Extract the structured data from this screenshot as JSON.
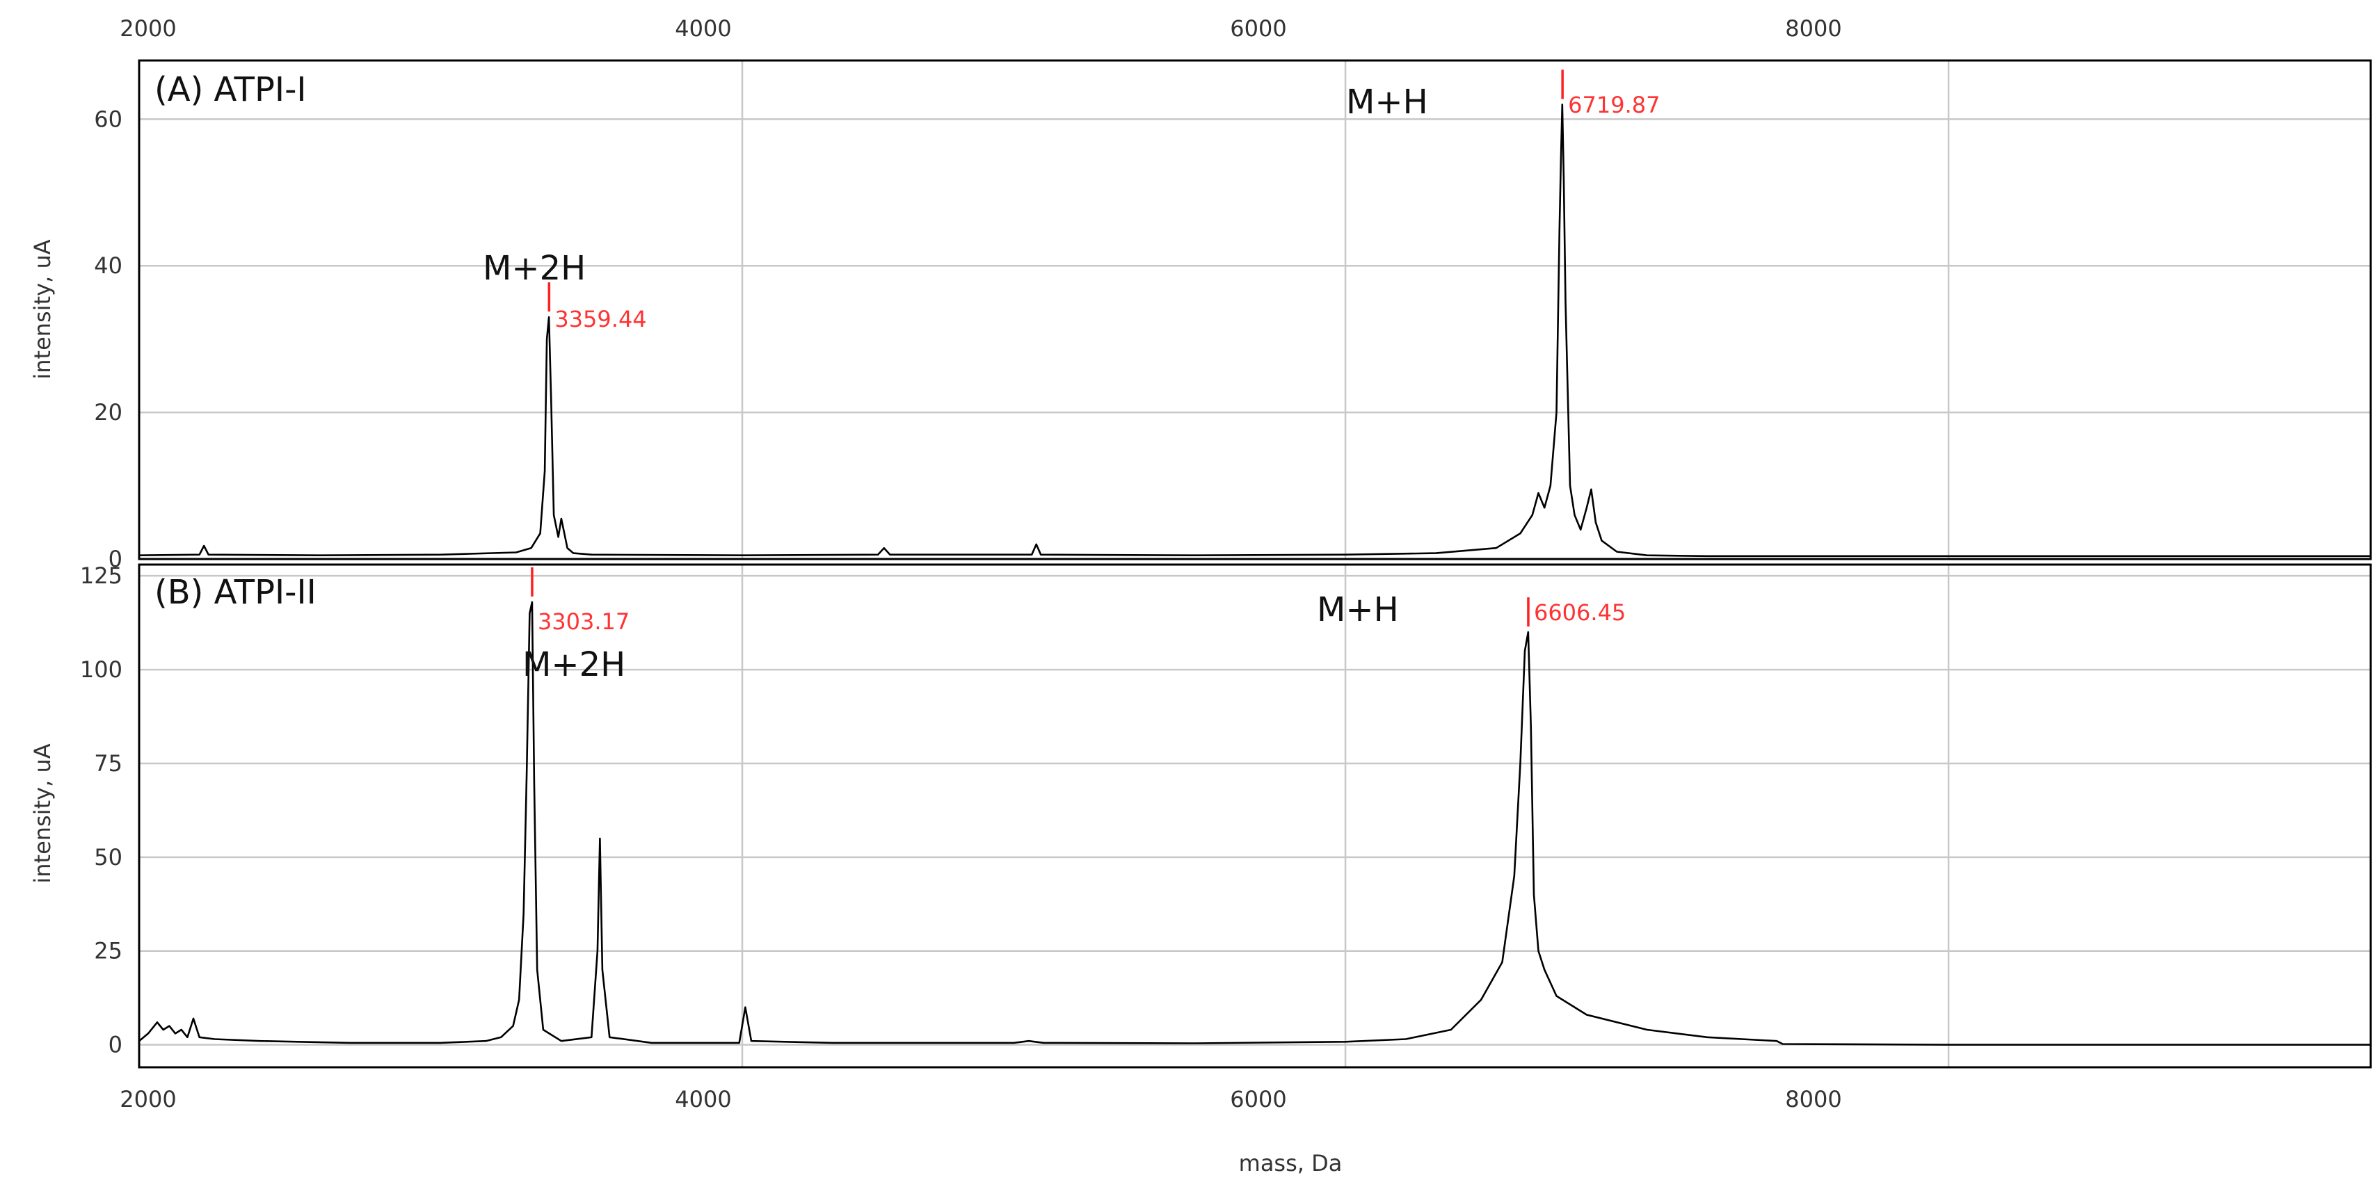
{
  "chart_data": [
    {
      "type": "line",
      "panel_label": "(A) ATPI-I",
      "xlabel": "",
      "ylabel": "intensity, uA",
      "xlim": [
        2000,
        9400
      ],
      "ylim": [
        0,
        68
      ],
      "x_ticks": [
        2000,
        4000,
        6000,
        8000
      ],
      "x_tick_labels": [
        "2000",
        "4000",
        "6000",
        "8000"
      ],
      "y_ticks": [
        0,
        20,
        40,
        60
      ],
      "y_tick_labels": [
        "0",
        "20",
        "40",
        "60"
      ],
      "grid": true,
      "x": [
        2000,
        2200,
        2215,
        2230,
        2600,
        3000,
        3250,
        3300,
        3330,
        3345,
        3352,
        3359,
        3366,
        3375,
        3390,
        3400,
        3420,
        3440,
        3500,
        4000,
        4450,
        4470,
        4490,
        4900,
        4960,
        4975,
        4990,
        5500,
        6000,
        6300,
        6500,
        6580,
        6620,
        6640,
        6660,
        6680,
        6700,
        6710,
        6715,
        6719,
        6724,
        6730,
        6745,
        6760,
        6780,
        6800,
        6815,
        6830,
        6850,
        6900,
        7000,
        7200,
        8000,
        9400
      ],
      "values": [
        0.5,
        0.6,
        1.8,
        0.6,
        0.5,
        0.6,
        0.9,
        1.5,
        3.5,
        12,
        30,
        33,
        22,
        6,
        3,
        5.5,
        1.5,
        0.8,
        0.6,
        0.5,
        0.6,
        1.5,
        0.6,
        0.6,
        0.6,
        2,
        0.6,
        0.5,
        0.6,
        0.8,
        1.5,
        3.5,
        6,
        9,
        7,
        10,
        20,
        45,
        55,
        62,
        52,
        35,
        10,
        6,
        4,
        7,
        9.5,
        5,
        2.5,
        1,
        0.5,
        0.4,
        0.4,
        0.4
      ],
      "annotations": [
        {
          "ion": "M+2H",
          "mass_label": "3359.44",
          "x": 3359.44,
          "y": 33
        },
        {
          "ion": "M+H",
          "mass_label": "6719.87",
          "x": 6719.87,
          "y": 62
        }
      ]
    },
    {
      "type": "line",
      "panel_label": "(B) ATPI-II",
      "xlabel": "mass, Da",
      "ylabel": "intensity, uA",
      "xlim": [
        2000,
        9400
      ],
      "ylim": [
        -6,
        128
      ],
      "x_ticks": [
        2000,
        4000,
        6000,
        8000
      ],
      "x_tick_labels": [
        "2000",
        "4000",
        "6000",
        "8000"
      ],
      "y_ticks": [
        0,
        25,
        50,
        75,
        100,
        125
      ],
      "y_tick_labels": [
        "0",
        "25",
        "50",
        "75",
        "100",
        "125"
      ],
      "grid": true,
      "x": [
        2000,
        2030,
        2060,
        2080,
        2100,
        2120,
        2140,
        2160,
        2180,
        2200,
        2250,
        2400,
        2700,
        3000,
        3150,
        3200,
        3240,
        3260,
        3275,
        3285,
        3295,
        3303,
        3310,
        3320,
        3340,
        3400,
        3500,
        3520,
        3528,
        3536,
        3560,
        3700,
        3990,
        4010,
        4030,
        4300,
        4900,
        4950,
        5000,
        5500,
        6000,
        6200,
        6350,
        6450,
        6520,
        6560,
        6580,
        6595,
        6606,
        6615,
        6625,
        6640,
        6660,
        6700,
        6800,
        7000,
        7200,
        7430,
        7450,
        8000,
        9400
      ],
      "values": [
        1,
        3,
        6,
        4,
        5,
        3,
        4,
        2,
        7,
        2,
        1.5,
        1,
        0.5,
        0.5,
        1,
        2,
        5,
        12,
        35,
        72,
        115,
        118,
        70,
        20,
        4,
        1,
        2,
        25,
        55,
        20,
        2,
        0.5,
        0.5,
        10,
        1,
        0.5,
        0.5,
        1,
        0.5,
        0.4,
        0.8,
        1.5,
        4,
        12,
        22,
        45,
        75,
        105,
        110,
        85,
        40,
        25,
        20,
        13,
        8,
        4,
        2,
        1,
        0.2,
        0,
        0
      ],
      "annotations": [
        {
          "ion": "M+2H",
          "mass_label": "3303.17",
          "x": 3303.17,
          "y": 118
        },
        {
          "ion": "M+H",
          "mass_label": "6606.45",
          "x": 6606.45,
          "y": 110
        }
      ]
    }
  ]
}
